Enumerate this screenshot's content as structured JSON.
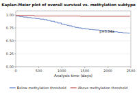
{
  "chart_data": {
    "type": "line",
    "title": "Kaplan-Meier plot of overall survival vs. methylation subtype",
    "xlabel": "Analysis time (days)",
    "xlim": [
      0,
      2500
    ],
    "ylim": [
      0.0,
      1.08
    ],
    "xticks": [
      0,
      500,
      1000,
      1500,
      2000,
      2500
    ],
    "yticks": [
      {
        "value": 0.0,
        "label": "0.00"
      },
      {
        "value": 0.25,
        "label": "0.25"
      },
      {
        "value": 0.5,
        "label": "0.50"
      },
      {
        "value": 0.75,
        "label": "0.75"
      },
      {
        "value": 1.0,
        "label": "1.00"
      }
    ],
    "grid": true,
    "legend": "bottom",
    "annotations": [
      {
        "text": "p=0.04a",
        "x": 1820,
        "y": 0.655
      }
    ],
    "series": [
      {
        "name": "Below methylation threshold",
        "color": "#6080C8",
        "x": [
          0,
          80,
          80,
          160,
          160,
          250,
          250,
          340,
          340,
          430,
          430,
          520,
          520,
          610,
          610,
          680,
          680,
          760,
          760,
          840,
          840,
          910,
          910,
          990,
          990,
          1060,
          1060,
          1110,
          1110,
          1160,
          1160,
          1220,
          1220,
          1290,
          1290,
          1360,
          1360,
          1430,
          1430,
          1510,
          1510,
          1590,
          1590,
          1660,
          1660,
          1730,
          1730,
          1810,
          1810,
          1870,
          1870,
          1940,
          1940,
          2020,
          2020,
          2120,
          2120,
          2220,
          2220,
          2320,
          2320,
          2420,
          2420,
          2480
        ],
        "values": [
          0.98,
          0.98,
          0.97,
          0.97,
          0.96,
          0.96,
          0.95,
          0.95,
          0.94,
          0.94,
          0.93,
          0.93,
          0.92,
          0.92,
          0.91,
          0.91,
          0.895,
          0.895,
          0.88,
          0.88,
          0.865,
          0.865,
          0.845,
          0.845,
          0.825,
          0.825,
          0.81,
          0.81,
          0.8,
          0.8,
          0.79,
          0.79,
          0.775,
          0.775,
          0.76,
          0.76,
          0.75,
          0.75,
          0.74,
          0.74,
          0.73,
          0.73,
          0.72,
          0.72,
          0.715,
          0.715,
          0.71,
          0.71,
          0.705,
          0.705,
          0.7,
          0.7,
          0.695,
          0.695,
          0.685,
          0.685,
          0.675,
          0.675,
          0.665,
          0.665,
          0.655,
          0.655,
          0.65,
          0.65
        ]
      },
      {
        "name": "Above methylation threshold",
        "color": "#C05050",
        "x": [
          0,
          400,
          400,
          1400,
          1400,
          2480
        ],
        "values": [
          0.99,
          0.99,
          0.98,
          0.98,
          0.975,
          0.975
        ]
      }
    ]
  }
}
